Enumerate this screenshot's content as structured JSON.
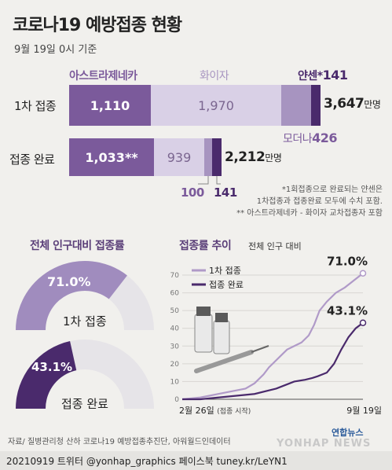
{
  "header": {
    "title": "코로나19 예방접종 현황",
    "date": "9월 19일 0시 기준"
  },
  "brands": {
    "astrazeneca": "아스트라제네카",
    "pfizer": "화이자",
    "janssen": "얀센",
    "janssen_mark": "*",
    "janssen_value": "141",
    "moderna": "모더나",
    "moderna_value": "426"
  },
  "rows": {
    "first": {
      "label": "1차 접종",
      "astrazeneca": "1,110",
      "pfizer": "1,970",
      "total": "3,647",
      "unit": "만명"
    },
    "complete": {
      "label": "접종 완료",
      "astrazeneca": "1,033**",
      "pfizer": "939",
      "moderna": "100",
      "janssen": "141",
      "total": "2,212",
      "unit": "만명"
    }
  },
  "notes": {
    "line1": "*1회접종으로 완료되는 얀센은",
    "line2": "1차접종과 접종완료 모두에 수치 포함.",
    "line3": "** 아스트라제네카 - 화이자 교차접종자 포함"
  },
  "gauges": {
    "title": "전체 인구대비 접종률",
    "first_value": "71.0%",
    "first_label": "1차 접종",
    "first_fraction": 0.71,
    "complete_value": "43.1%",
    "complete_label": "접종 완료",
    "complete_fraction": 0.431
  },
  "chart_data": {
    "type": "line",
    "title": "접종률 추이",
    "subtitle": "전체 인구 대비",
    "ylim": [
      0,
      70
    ],
    "yticks": [
      0,
      10,
      20,
      30,
      40,
      50,
      60,
      70
    ],
    "x_start_label": "2월 26일",
    "x_start_note": "(접종 시작)",
    "x_end_label": "9월 19일",
    "series": [
      {
        "name": "1차 접종",
        "color": "#b09ac8",
        "end_label": "71.0%",
        "points": [
          [
            0,
            0
          ],
          [
            0.05,
            0.5
          ],
          [
            0.1,
            1
          ],
          [
            0.15,
            2
          ],
          [
            0.2,
            3
          ],
          [
            0.25,
            4
          ],
          [
            0.3,
            5
          ],
          [
            0.35,
            6
          ],
          [
            0.4,
            9
          ],
          [
            0.45,
            14
          ],
          [
            0.48,
            18
          ],
          [
            0.5,
            20
          ],
          [
            0.55,
            25
          ],
          [
            0.58,
            28
          ],
          [
            0.62,
            30
          ],
          [
            0.66,
            32
          ],
          [
            0.7,
            36
          ],
          [
            0.73,
            42
          ],
          [
            0.76,
            50
          ],
          [
            0.8,
            55
          ],
          [
            0.85,
            60
          ],
          [
            0.9,
            63
          ],
          [
            0.95,
            67
          ],
          [
            1.0,
            71.0
          ]
        ]
      },
      {
        "name": "접종 완료",
        "color": "#4a2a6c",
        "end_label": "43.1%",
        "points": [
          [
            0,
            0
          ],
          [
            0.1,
            0
          ],
          [
            0.15,
            0.5
          ],
          [
            0.2,
            1
          ],
          [
            0.3,
            2
          ],
          [
            0.4,
            3
          ],
          [
            0.48,
            5
          ],
          [
            0.52,
            6
          ],
          [
            0.57,
            8
          ],
          [
            0.62,
            10
          ],
          [
            0.68,
            11
          ],
          [
            0.72,
            12
          ],
          [
            0.75,
            13
          ],
          [
            0.8,
            15
          ],
          [
            0.84,
            20
          ],
          [
            0.88,
            28
          ],
          [
            0.92,
            35
          ],
          [
            0.96,
            40
          ],
          [
            1.0,
            43.1
          ]
        ]
      }
    ]
  },
  "footer": {
    "source": "자료/ 질병관리청 산하 코로나19 예방접종추진단, 아워월드인데이터",
    "credits": "20210919 트위터 @yonhap_graphics 페이스북 tuney.kr/LeYN1",
    "logo_kr": "연합뉴스",
    "logo_en": "YONHAP NEWS"
  },
  "colors": {
    "astrazeneca": "#7b5a9b",
    "pfizer": "#d9d0e6",
    "moderna": "#a794c0",
    "janssen": "#4a2a6c",
    "accent": "#5a3e78"
  }
}
